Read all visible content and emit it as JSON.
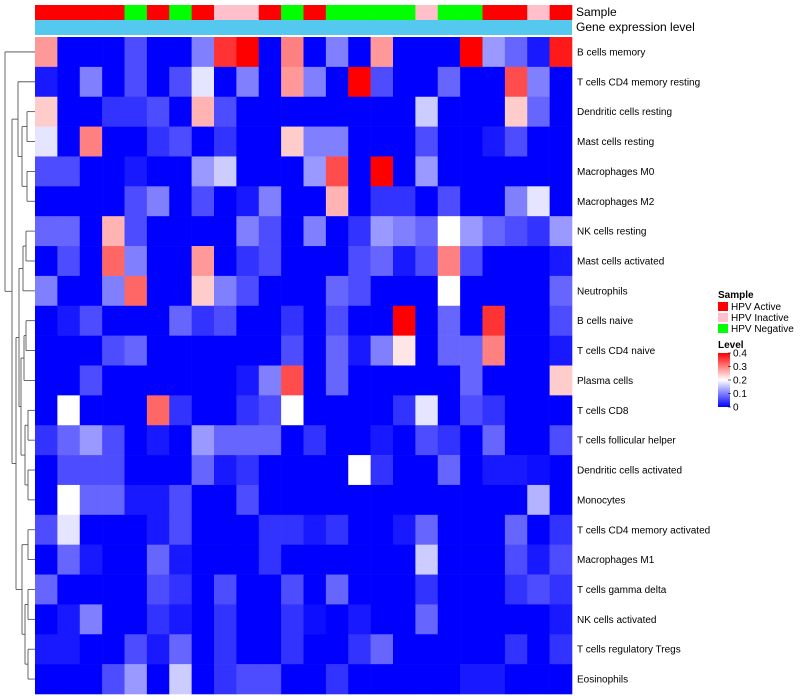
{
  "chart_data": {
    "type": "heatmap",
    "title": "",
    "annotation_rows": [
      "Sample",
      "Gene expression level"
    ],
    "column_groups": [
      "HPV Active",
      "HPV Active",
      "HPV Active",
      "HPV Active",
      "HPV Negative",
      "HPV Active",
      "HPV Negative",
      "HPV Active",
      "HPV Inactive",
      "HPV Inactive",
      "HPV Active",
      "HPV Negative",
      "HPV Active",
      "HPV Negative",
      "HPV Negative",
      "HPV Negative",
      "HPV Negative",
      "HPV Inactive",
      "HPV Negative",
      "HPV Negative",
      "HPV Active",
      "HPV Active",
      "HPV Inactive",
      "HPV Active"
    ],
    "rows": [
      "B cells memory",
      "T cells CD4 memory resting",
      "Dendritic cells resting",
      "Mast cells resting",
      "Macrophages M0",
      "Macrophages M2",
      "NK cells resting",
      "Mast cells activated",
      "Neutrophils",
      "B cells naive",
      "T cells CD4 naive",
      "Plasma cells",
      "T cells CD8",
      "T cells follicular helper",
      "Dendritic cells activated",
      "Monocytes",
      "T cells CD4 memory activated",
      "Macrophages M1",
      "T cells gamma delta",
      "NK cells activated",
      "T cells regulatory  Tregs",
      "Eosinophils"
    ],
    "values": [
      [
        0.28,
        0,
        0,
        0,
        0.06,
        0,
        0,
        0.1,
        0.36,
        0.4,
        0,
        0.3,
        0,
        0.1,
        0,
        0.28,
        0,
        0,
        0,
        0.4,
        0.12,
        0.08,
        0.02,
        0.38
      ],
      [
        0.02,
        0,
        0.1,
        0,
        0.06,
        0,
        0.06,
        0.18,
        0,
        0.1,
        0,
        0.28,
        0.1,
        0,
        0.4,
        0.06,
        0,
        0,
        0.08,
        0,
        0,
        0.34,
        0.1,
        0
      ],
      [
        0.24,
        0,
        0,
        0.04,
        0.04,
        0.06,
        0,
        0.26,
        0.06,
        0,
        0,
        0,
        0,
        0,
        0,
        0,
        0,
        0.16,
        0,
        0,
        0,
        0.24,
        0.08,
        0
      ],
      [
        0.18,
        0,
        0.3,
        0,
        0,
        0.04,
        0.06,
        0,
        0.04,
        0,
        0,
        0.24,
        0.1,
        0.1,
        0,
        0,
        0,
        0.06,
        0,
        0,
        0.02,
        0.06,
        0,
        0
      ],
      [
        0.06,
        0.06,
        0,
        0,
        0.02,
        0,
        0,
        0.12,
        0.16,
        0,
        0,
        0,
        0.12,
        0.34,
        0,
        0.4,
        0,
        0.12,
        0,
        0,
        0,
        0,
        0,
        0
      ],
      [
        0,
        0,
        0,
        0,
        0.06,
        0.1,
        0,
        0.06,
        0,
        0.02,
        0.1,
        0,
        0,
        0.26,
        0,
        0.04,
        0.04,
        0,
        0.06,
        0,
        0,
        0.1,
        0.18,
        0
      ],
      [
        0.08,
        0.08,
        0,
        0.26,
        0.06,
        0,
        0,
        0,
        0,
        0.1,
        0.06,
        0,
        0.1,
        0,
        0.04,
        0.12,
        0.1,
        0.08,
        0.2,
        0.12,
        0.08,
        0.06,
        0.04,
        0.12
      ],
      [
        0,
        0.06,
        0,
        0.32,
        0.1,
        0,
        0,
        0.28,
        0,
        0.04,
        0.06,
        0,
        0,
        0,
        0.06,
        0.08,
        0.02,
        0.06,
        0.3,
        0.06,
        0,
        0,
        0,
        0.02
      ],
      [
        0.1,
        0,
        0,
        0.1,
        0.32,
        0,
        0,
        0.24,
        0.1,
        0.06,
        0,
        0,
        0,
        0.08,
        0.06,
        0,
        0,
        0,
        0.2,
        0,
        0,
        0,
        0,
        0.08
      ],
      [
        0,
        0.02,
        0.06,
        0,
        0,
        0,
        0.08,
        0.04,
        0.06,
        0,
        0,
        0.04,
        0,
        0.06,
        0,
        0,
        0.4,
        0,
        0.08,
        0,
        0.36,
        0,
        0,
        0.06
      ],
      [
        0,
        0,
        0,
        0.06,
        0.08,
        0,
        0,
        0,
        0,
        0,
        0,
        0.06,
        0,
        0.08,
        0.02,
        0.1,
        0.22,
        0,
        0.08,
        0.08,
        0.3,
        0,
        0,
        0.02
      ],
      [
        0,
        0,
        0.06,
        0,
        0,
        0,
        0,
        0,
        0,
        0.02,
        0.1,
        0.34,
        0,
        0.08,
        0,
        0,
        0,
        0,
        0,
        0.08,
        0,
        0,
        0,
        0.24
      ],
      [
        0,
        0.2,
        0,
        0,
        0,
        0.32,
        0.04,
        0,
        0,
        0.04,
        0.06,
        0.2,
        0,
        0,
        0,
        0,
        0.04,
        0.18,
        0,
        0.06,
        0.04,
        0,
        0,
        0
      ],
      [
        0.04,
        0.08,
        0.12,
        0.06,
        0,
        0.02,
        0,
        0.12,
        0.08,
        0.08,
        0.08,
        0,
        0.04,
        0,
        0,
        0.02,
        0,
        0.06,
        0.04,
        0,
        0.08,
        0,
        0,
        0.06
      ],
      [
        0,
        0.06,
        0.06,
        0.06,
        0,
        0,
        0,
        0.08,
        0.02,
        0.04,
        0,
        0,
        0,
        0,
        0.2,
        0.04,
        0,
        0,
        0.08,
        0,
        0.02,
        0.02,
        0.01,
        0
      ],
      [
        0,
        0.2,
        0.08,
        0.08,
        0.02,
        0.02,
        0.06,
        0,
        0,
        0.06,
        0,
        0,
        0,
        0,
        0,
        0,
        0,
        0,
        0,
        0,
        0,
        0,
        0.14,
        0
      ],
      [
        0.06,
        0.18,
        0,
        0,
        0,
        0.02,
        0.06,
        0,
        0,
        0,
        0.04,
        0.04,
        0.02,
        0.04,
        0,
        0,
        0.02,
        0.08,
        0,
        0,
        0,
        0.08,
        0,
        0.04
      ],
      [
        0,
        0.08,
        0.02,
        0,
        0,
        0.08,
        0.02,
        0,
        0,
        0,
        0.04,
        0,
        0,
        0,
        0,
        0,
        0,
        0.16,
        0,
        0,
        0,
        0.06,
        0.02,
        0.06
      ],
      [
        0.08,
        0,
        0,
        0,
        0,
        0.06,
        0.04,
        0,
        0.06,
        0,
        0,
        0.06,
        0,
        0.08,
        0,
        0,
        0,
        0.04,
        0,
        0,
        0,
        0.04,
        0.06,
        0.04
      ],
      [
        0,
        0.02,
        0.1,
        0,
        0,
        0.04,
        0.02,
        0,
        0.04,
        0,
        0,
        0.04,
        0.01,
        0,
        0.02,
        0,
        0,
        0.08,
        0,
        0,
        0,
        0,
        0,
        0.02
      ],
      [
        0.02,
        0.02,
        0,
        0,
        0.06,
        0.02,
        0.08,
        0,
        0.04,
        0,
        0,
        0.04,
        0,
        0,
        0.04,
        0.08,
        0,
        0,
        0,
        0,
        0,
        0.04,
        0,
        0.04
      ],
      [
        0,
        0,
        0,
        0.06,
        0.12,
        0,
        0.16,
        0,
        0.04,
        0.06,
        0.06,
        0,
        0,
        0.04,
        0,
        0,
        0,
        0,
        0,
        0.02,
        0.02,
        0,
        0,
        0
      ]
    ],
    "color_scale": {
      "min": 0,
      "max": 0.4,
      "colors": [
        "#0000ff",
        "#ffffff",
        "#ff0000"
      ]
    },
    "legend": {
      "sample_title": "Sample",
      "sample_entries": [
        {
          "label": "HPV Active",
          "color": "#ff0000"
        },
        {
          "label": "HPV Inactive",
          "color": "#ffc0cb"
        },
        {
          "label": "HPV Negative",
          "color": "#00ff00"
        }
      ],
      "level_title": "Level",
      "level_ticks": [
        "0.4",
        "0.3",
        "0.2",
        "0.1",
        "0"
      ],
      "level_tick_values": [
        0.4,
        0.3,
        0.2,
        0.1,
        0
      ]
    },
    "gene_expression_color": "#55c8f0",
    "dendrogram": "left, rows clustered",
    "legend_position": "right"
  }
}
